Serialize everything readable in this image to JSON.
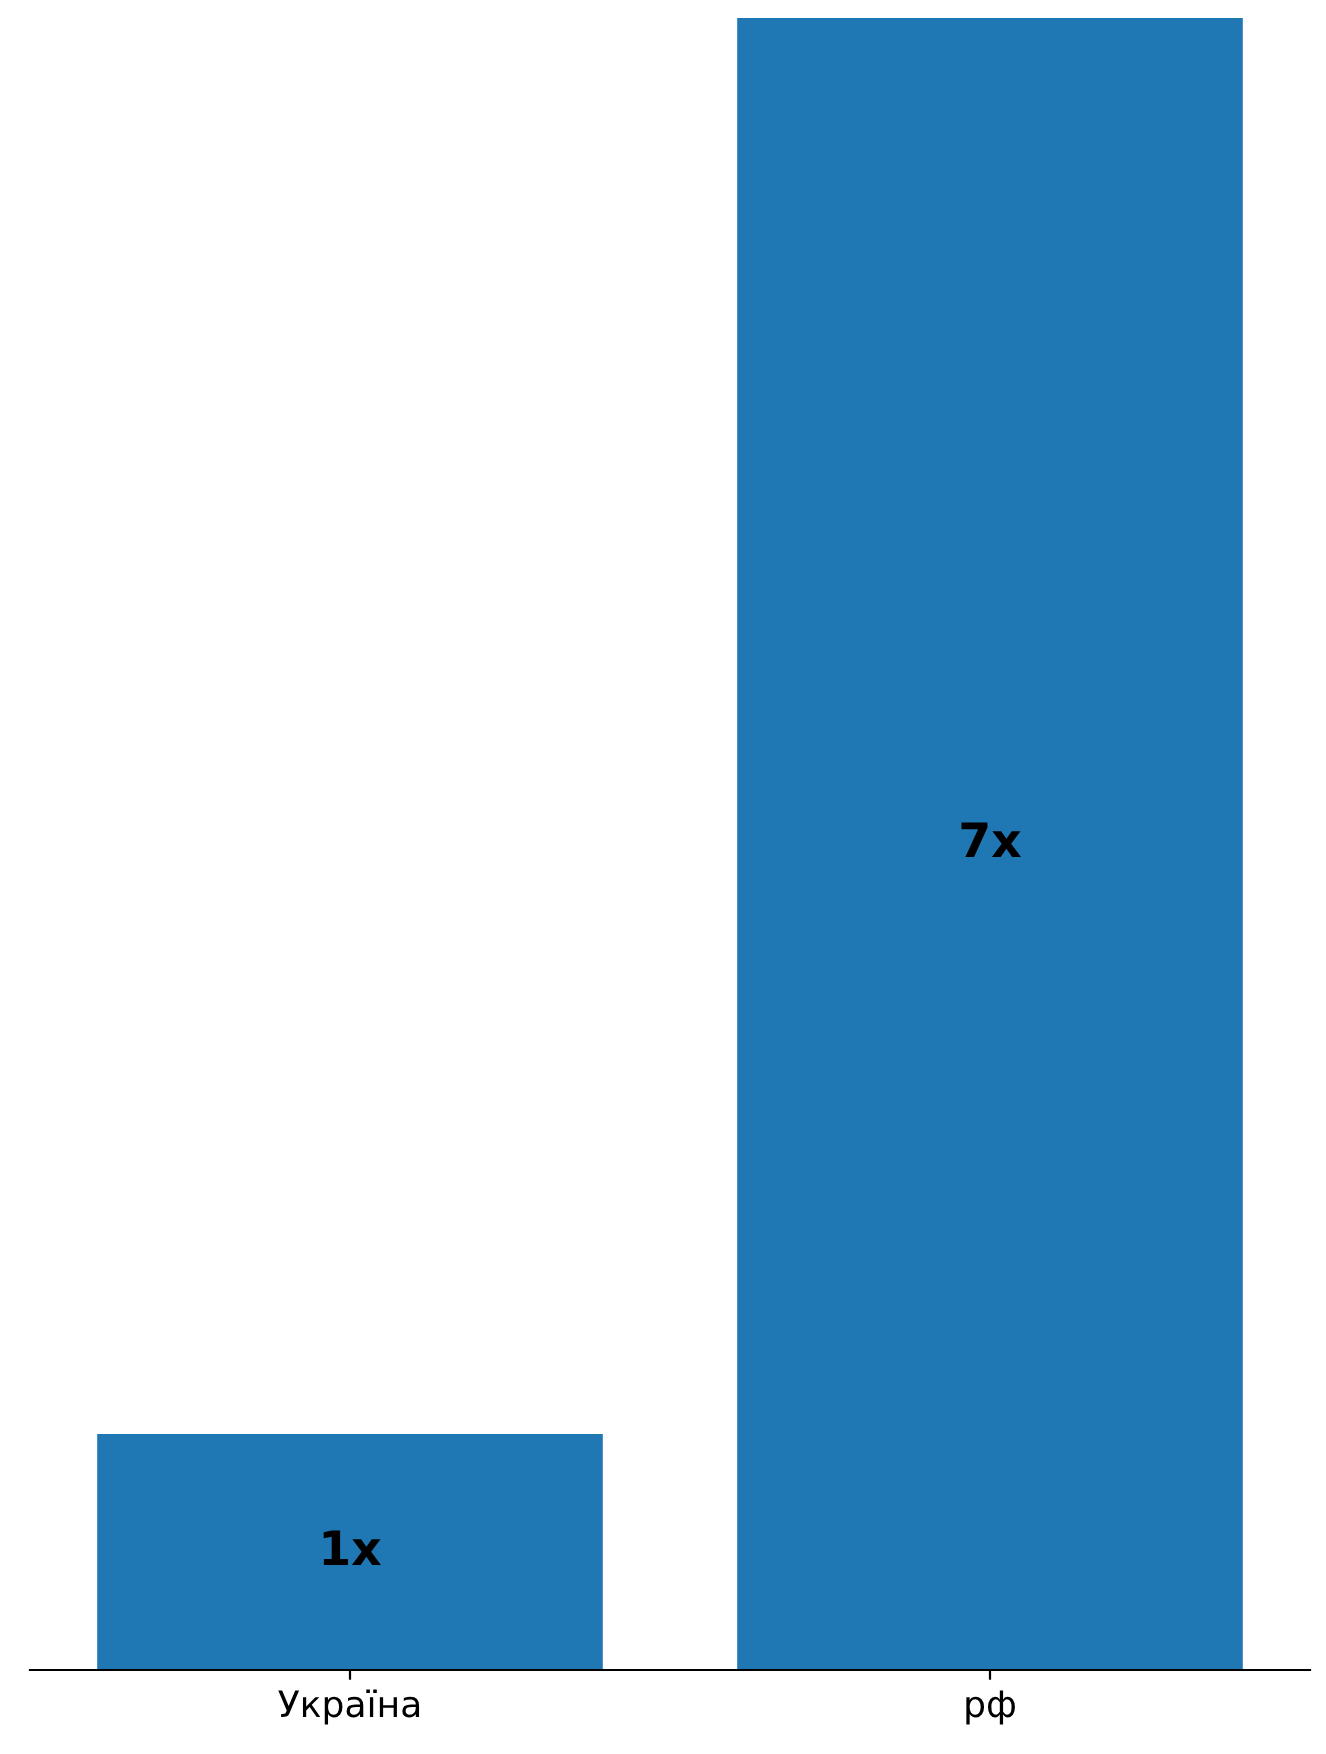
{
  "chart_data": {
    "type": "bar",
    "categories": [
      "Україна",
      "рф"
    ],
    "values": [
      1,
      7
    ],
    "value_labels": [
      "1x",
      "7x"
    ],
    "color": "#1f77b4",
    "grid": false
  }
}
